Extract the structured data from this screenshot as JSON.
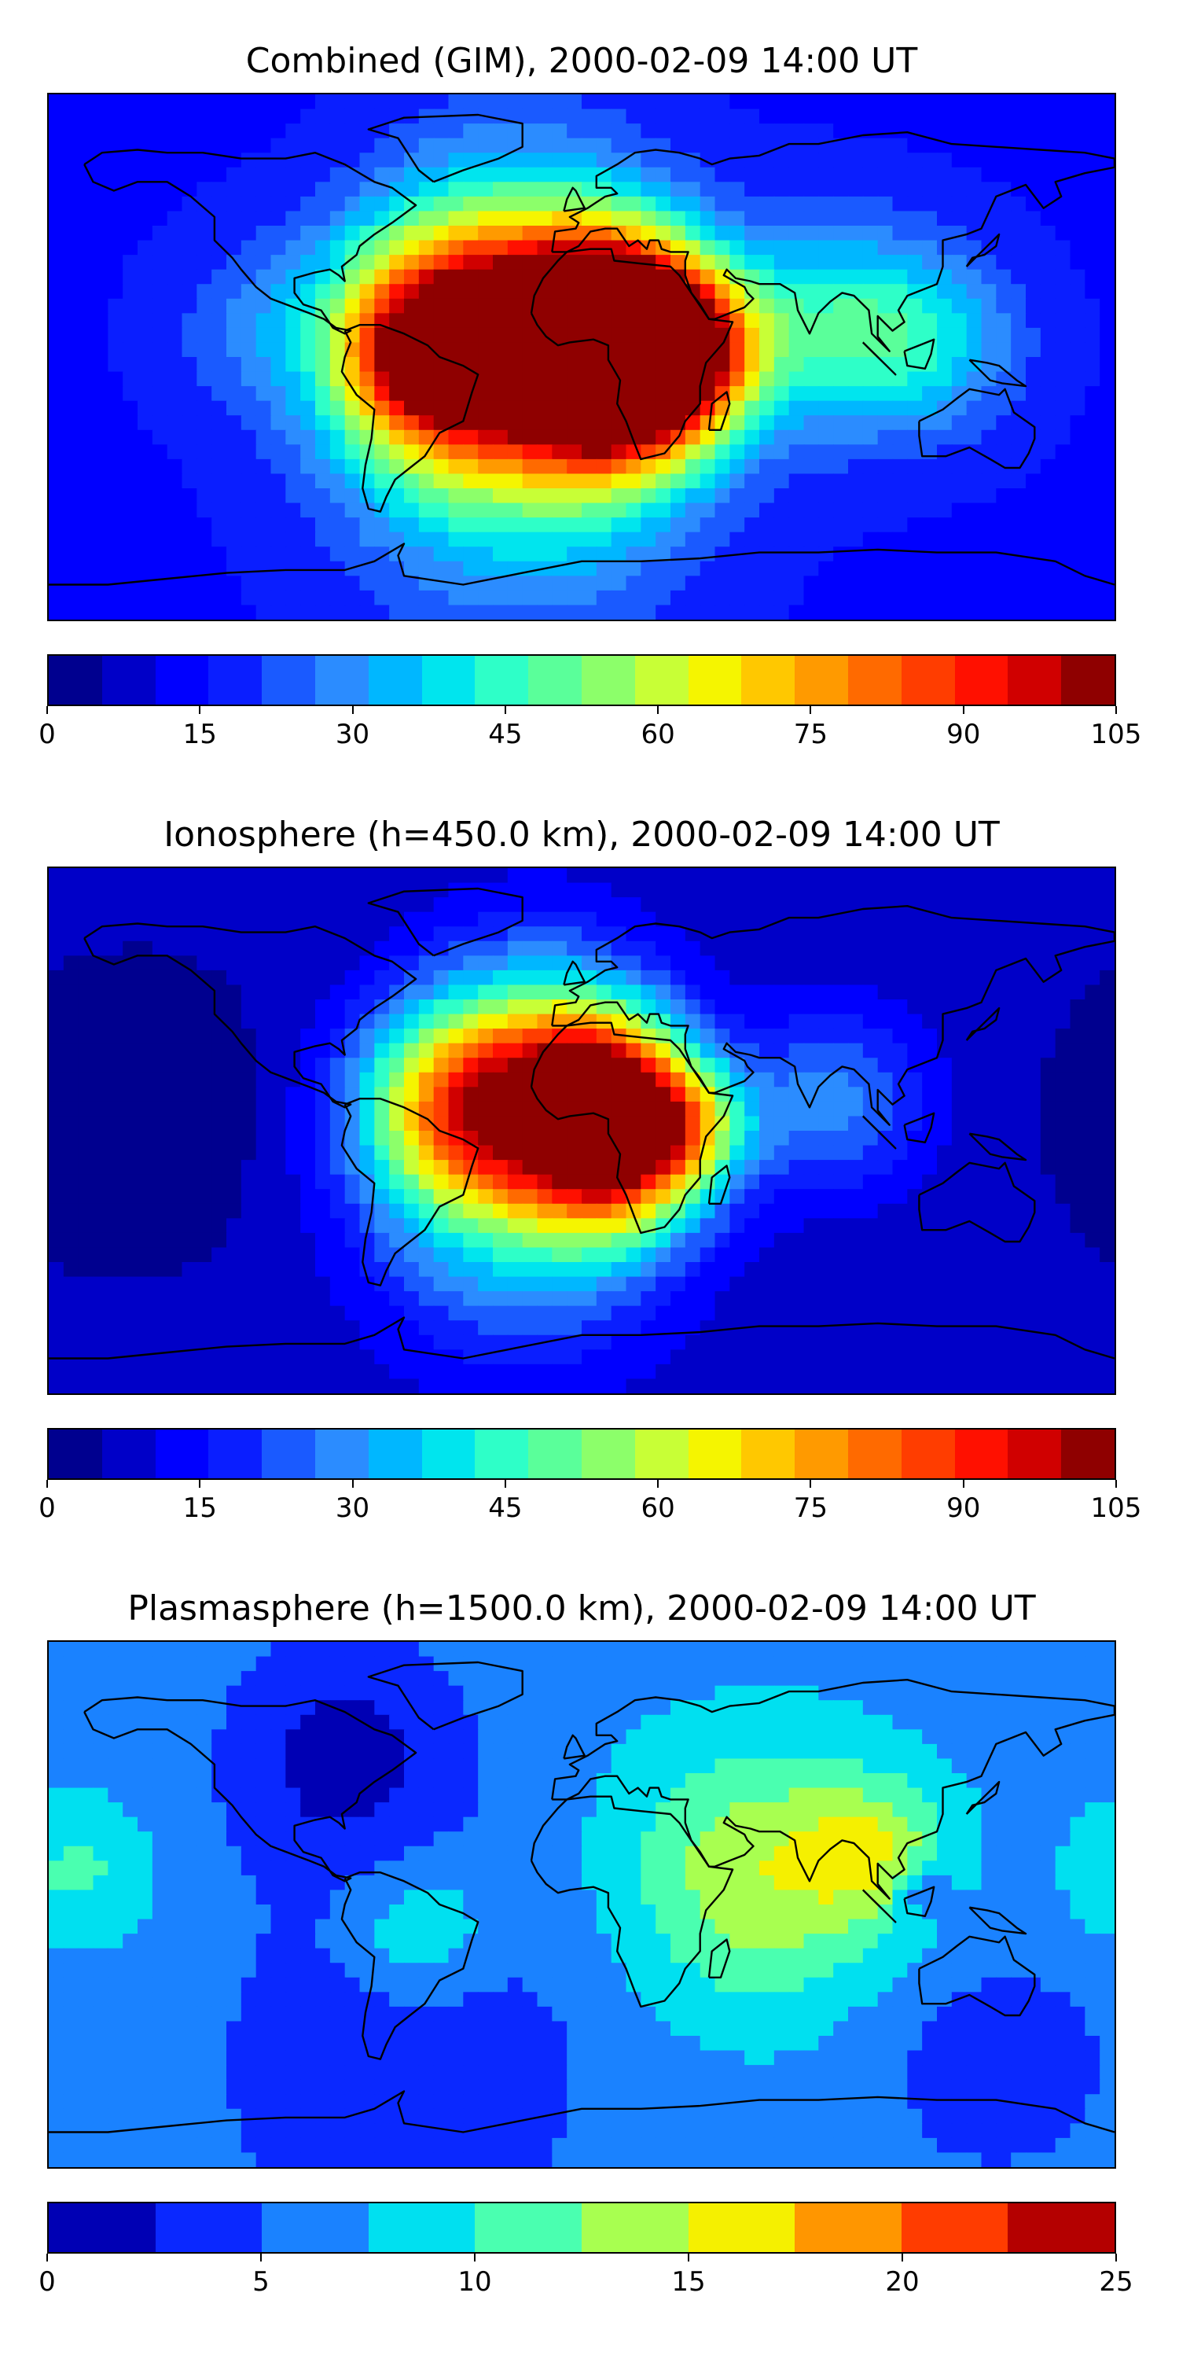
{
  "panels": [
    {
      "title": "Combined (GIM), 2000-02-09 14:00 UT",
      "colorbar": {
        "min": 0,
        "max": 105,
        "step": 5,
        "ticks": [
          "0",
          "15",
          "30",
          "45",
          "60",
          "75",
          "90",
          "105"
        ],
        "colors": [
          "#00008f",
          "#0000c8",
          "#0000ff",
          "#0a1eff",
          "#1a5aff",
          "#2b8cff",
          "#00b7ff",
          "#00e5ee",
          "#2effc8",
          "#5aff9a",
          "#8cff6a",
          "#c8ff36",
          "#f5f500",
          "#ffc800",
          "#ff9a00",
          "#ff6a00",
          "#ff3d00",
          "#ff1000",
          "#d00000",
          "#8f0000"
        ]
      },
      "field": {
        "base": 15,
        "scale": 105,
        "blobs": [
          {
            "lon": -45,
            "lat": 5,
            "r": 38,
            "v": 85
          },
          {
            "lon": -55,
            "lat": -2,
            "r": 20,
            "v": 20
          },
          {
            "lon": 10,
            "lat": 14,
            "r": 32,
            "v": 78
          },
          {
            "lon": 12,
            "lat": -8,
            "r": 32,
            "v": 80
          },
          {
            "lon": 35,
            "lat": 3,
            "r": 25,
            "v": 48
          },
          {
            "lon": -20,
            "lat": -30,
            "r": 55,
            "v": 32
          },
          {
            "lon": -20,
            "lat": 40,
            "r": 45,
            "v": 20
          },
          {
            "lon": 85,
            "lat": 10,
            "r": 35,
            "v": 28
          },
          {
            "lon": 120,
            "lat": 5,
            "r": 30,
            "v": 18
          },
          {
            "lon": -110,
            "lat": 10,
            "r": 30,
            "v": 10
          }
        ]
      }
    },
    {
      "title": "Ionosphere  (h=450.0 km), 2000-02-09 14:00 UT",
      "colorbar": {
        "min": 0,
        "max": 105,
        "step": 5,
        "ticks": [
          "0",
          "15",
          "30",
          "45",
          "60",
          "75",
          "90",
          "105"
        ],
        "colors": [
          "#00008f",
          "#0000c8",
          "#0000ff",
          "#0a1eff",
          "#1a5aff",
          "#2b8cff",
          "#00b7ff",
          "#00e5ee",
          "#2effc8",
          "#5aff9a",
          "#8cff6a",
          "#c8ff36",
          "#f5f500",
          "#ffc800",
          "#ff9a00",
          "#ff6a00",
          "#ff3d00",
          "#ff1000",
          "#d00000",
          "#8f0000"
        ]
      },
      "field": {
        "base": 6,
        "scale": 105,
        "blobs": [
          {
            "lon": -40,
            "lat": 8,
            "r": 35,
            "v": 65
          },
          {
            "lon": 5,
            "lat": 16,
            "r": 30,
            "v": 62
          },
          {
            "lon": 10,
            "lat": -8,
            "r": 30,
            "v": 62
          },
          {
            "lon": 35,
            "lat": 2,
            "r": 22,
            "v": 35
          },
          {
            "lon": -20,
            "lat": -30,
            "r": 50,
            "v": 28
          },
          {
            "lon": -15,
            "lat": 40,
            "r": 40,
            "v": 18
          },
          {
            "lon": 85,
            "lat": 10,
            "r": 32,
            "v": 22
          },
          {
            "lon": -150,
            "lat": 5,
            "r": 40,
            "v": -6
          }
        ]
      }
    },
    {
      "title": "Plasmasphere (h=1500.0 km), 2000-02-09 14:00 UT",
      "colorbar": {
        "min": 0,
        "max": 25,
        "step": 2.5,
        "ticks": [
          "0",
          "5",
          "10",
          "15",
          "20",
          "25"
        ],
        "colors": [
          "#0000b4",
          "#0a28ff",
          "#1a82ff",
          "#00e0f0",
          "#4affb0",
          "#a8ff50",
          "#f5f000",
          "#ff9600",
          "#ff3c00",
          "#b40000"
        ]
      },
      "field": {
        "base": 6.5,
        "scale": 25,
        "blobs": [
          {
            "lon": 60,
            "lat": 10,
            "r": 45,
            "v": 8
          },
          {
            "lon": 100,
            "lat": 18,
            "r": 25,
            "v": 6
          },
          {
            "lon": -55,
            "lat": -10,
            "r": 25,
            "v": 5
          },
          {
            "lon": -170,
            "lat": 10,
            "r": 25,
            "v": 4
          },
          {
            "lon": -80,
            "lat": 50,
            "r": 40,
            "v": -5
          },
          {
            "lon": -60,
            "lat": -55,
            "r": 60,
            "v": -4
          },
          {
            "lon": 140,
            "lat": -55,
            "r": 40,
            "v": -3
          },
          {
            "lon": 115,
            "lat": 5,
            "r": 10,
            "v": -5
          }
        ]
      }
    }
  ]
}
